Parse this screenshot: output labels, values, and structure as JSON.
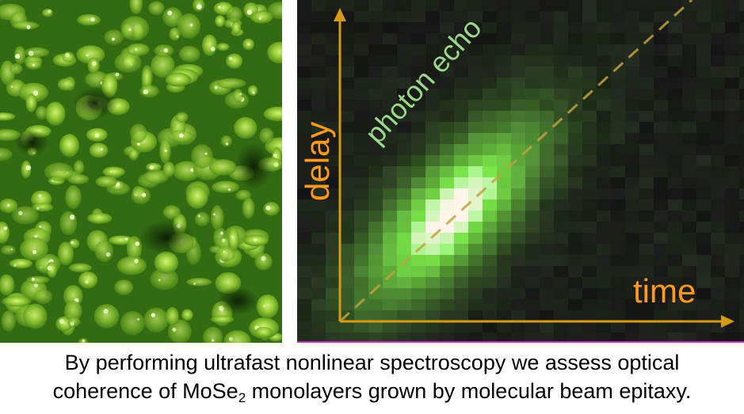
{
  "figure": {
    "left_image": {
      "description_icon": "afm-topography-image"
    },
    "right_plot": {
      "label_photon_echo": "photon echo",
      "label_delay": "delay",
      "label_time": "time",
      "colors": {
        "axis": "#d79a18",
        "photon_echo_text": "#9bd88a",
        "axis_label_text": "#ff9a1f",
        "signal_peak": "#f4ffe8",
        "signal_mid": "#5fe52c",
        "background": "#121212"
      }
    }
  },
  "caption": {
    "line1": "By performing ultrafast nonlinear spectroscopy we assess optical",
    "line2_prefix": "coherence of MoSe",
    "line2_sub": "2",
    "line2_suffix": " monolayers grown by molecular beam epitaxy."
  }
}
